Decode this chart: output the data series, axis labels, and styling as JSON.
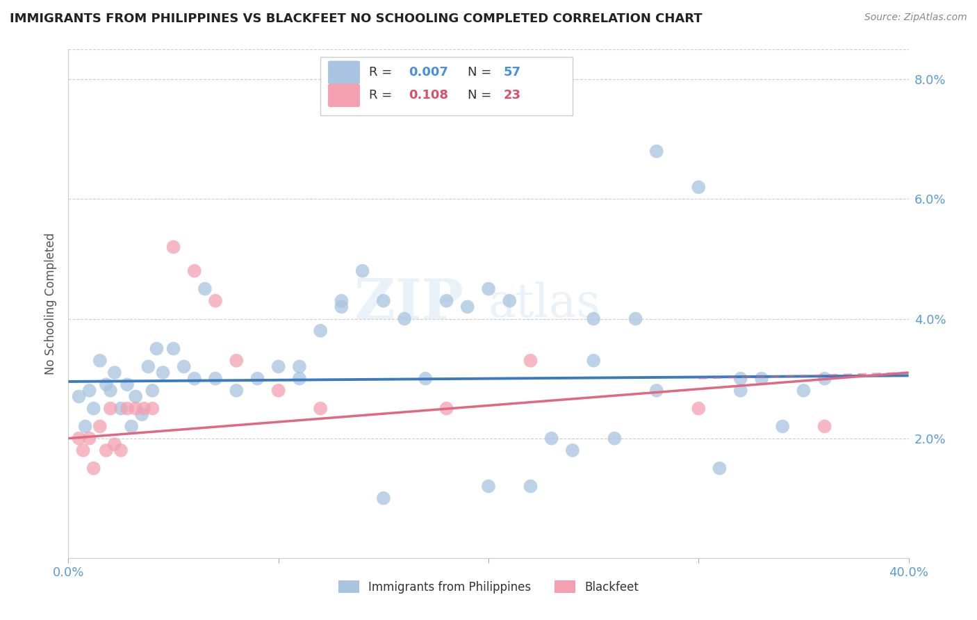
{
  "title": "IMMIGRANTS FROM PHILIPPINES VS BLACKFEET NO SCHOOLING COMPLETED CORRELATION CHART",
  "source": "Source: ZipAtlas.com",
  "ylabel": "No Schooling Completed",
  "xlim": [
    0.0,
    0.4
  ],
  "ylim": [
    0.0,
    0.085
  ],
  "ytick_vals": [
    0.02,
    0.04,
    0.06,
    0.08
  ],
  "ytick_labels": [
    "2.0%",
    "4.0%",
    "6.0%",
    "8.0%"
  ],
  "xtick_vals": [
    0.0,
    0.1,
    0.2,
    0.3,
    0.4
  ],
  "xtick_labels": [
    "0.0%",
    "",
    "",
    "",
    "40.0%"
  ],
  "legend_label1": "Immigrants from Philippines",
  "legend_label2": "Blackfeet",
  "color_blue": "#a8c4e0",
  "color_pink": "#f4a0b0",
  "color_blue_dark": "#3a7abf",
  "color_pink_dark": "#e06880",
  "color_blue_text": "#4a90d9",
  "color_pink_text": "#d9506a",
  "watermark_zip": "ZIP",
  "watermark_atlas": "atlas",
  "philippines_x": [
    0.005,
    0.008,
    0.01,
    0.012,
    0.015,
    0.018,
    0.02,
    0.022,
    0.025,
    0.028,
    0.03,
    0.032,
    0.035,
    0.038,
    0.04,
    0.042,
    0.045,
    0.05,
    0.055,
    0.06,
    0.065,
    0.07,
    0.08,
    0.09,
    0.1,
    0.11,
    0.12,
    0.13,
    0.14,
    0.15,
    0.16,
    0.17,
    0.18,
    0.19,
    0.2,
    0.21,
    0.22,
    0.23,
    0.24,
    0.25,
    0.26,
    0.27,
    0.28,
    0.3,
    0.31,
    0.32,
    0.33,
    0.34,
    0.35,
    0.36,
    0.25,
    0.2,
    0.15,
    0.13,
    0.11,
    0.32,
    0.28
  ],
  "philippines_y": [
    0.027,
    0.022,
    0.028,
    0.025,
    0.033,
    0.029,
    0.028,
    0.031,
    0.025,
    0.029,
    0.022,
    0.027,
    0.024,
    0.032,
    0.028,
    0.035,
    0.031,
    0.035,
    0.032,
    0.03,
    0.045,
    0.03,
    0.028,
    0.03,
    0.032,
    0.03,
    0.038,
    0.042,
    0.048,
    0.043,
    0.04,
    0.03,
    0.043,
    0.042,
    0.045,
    0.043,
    0.012,
    0.02,
    0.018,
    0.04,
    0.02,
    0.04,
    0.028,
    0.062,
    0.015,
    0.03,
    0.03,
    0.022,
    0.028,
    0.03,
    0.033,
    0.012,
    0.01,
    0.043,
    0.032,
    0.028,
    0.068
  ],
  "blackfeet_x": [
    0.005,
    0.007,
    0.01,
    0.012,
    0.015,
    0.018,
    0.02,
    0.022,
    0.025,
    0.028,
    0.032,
    0.036,
    0.04,
    0.05,
    0.06,
    0.07,
    0.08,
    0.1,
    0.12,
    0.18,
    0.22,
    0.3,
    0.36
  ],
  "blackfeet_y": [
    0.02,
    0.018,
    0.02,
    0.015,
    0.022,
    0.018,
    0.025,
    0.019,
    0.018,
    0.025,
    0.025,
    0.025,
    0.025,
    0.052,
    0.048,
    0.043,
    0.033,
    0.028,
    0.025,
    0.025,
    0.033,
    0.025,
    0.022
  ],
  "phil_trend_x": [
    0.0,
    0.4
  ],
  "phil_trend_y": [
    0.0295,
    0.0305
  ],
  "black_trend_x": [
    0.0,
    0.4
  ],
  "black_trend_y": [
    0.02,
    0.031
  ],
  "background_color": "#ffffff",
  "grid_color": "#cccccc",
  "tick_color": "#5b9bd5"
}
